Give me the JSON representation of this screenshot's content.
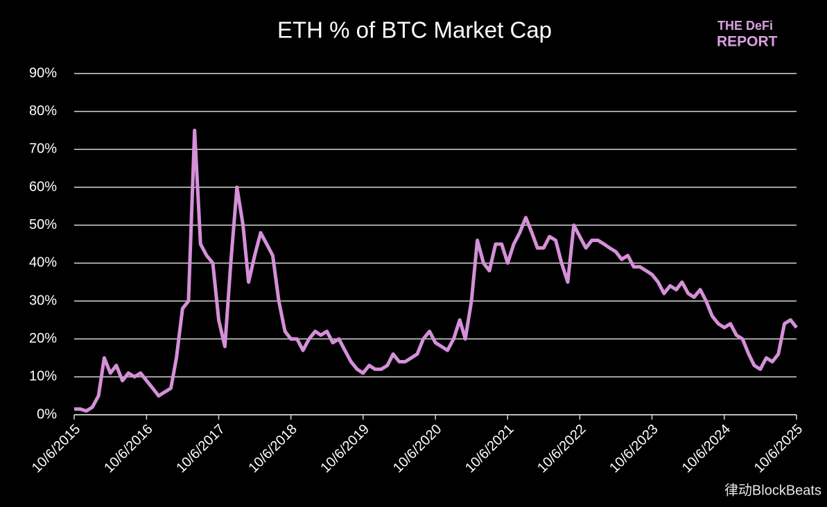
{
  "chart_data": {
    "type": "line",
    "title": "ETH % of BTC Market Cap",
    "logo": {
      "line1": "THE DeFi",
      "line2": "REPORT"
    },
    "watermark": "律动BlockBeats",
    "x": [
      "2015-10-06",
      "2015-11-06",
      "2015-12-06",
      "2016-01-06",
      "2016-02-06",
      "2016-03-06",
      "2016-04-06",
      "2016-05-06",
      "2016-06-06",
      "2016-07-06",
      "2016-08-06",
      "2016-09-06",
      "2016-10-06",
      "2016-11-06",
      "2016-12-06",
      "2017-01-06",
      "2017-02-06",
      "2017-03-06",
      "2017-04-06",
      "2017-05-06",
      "2017-06-06",
      "2017-07-06",
      "2017-08-06",
      "2017-09-06",
      "2017-10-06",
      "2017-11-06",
      "2017-12-06",
      "2018-01-06",
      "2018-02-06",
      "2018-03-06",
      "2018-04-06",
      "2018-05-06",
      "2018-06-06",
      "2018-07-06",
      "2018-08-06",
      "2018-09-06",
      "2018-10-06",
      "2018-11-06",
      "2018-12-06",
      "2019-01-06",
      "2019-02-06",
      "2019-03-06",
      "2019-04-06",
      "2019-05-06",
      "2019-06-06",
      "2019-07-06",
      "2019-08-06",
      "2019-09-06",
      "2019-10-06",
      "2019-11-06",
      "2019-12-06",
      "2020-01-06",
      "2020-02-06",
      "2020-03-06",
      "2020-04-06",
      "2020-05-06",
      "2020-06-06",
      "2020-07-06",
      "2020-08-06",
      "2020-09-06",
      "2020-10-06",
      "2020-11-06",
      "2020-12-06",
      "2021-01-06",
      "2021-02-06",
      "2021-03-06",
      "2021-04-06",
      "2021-05-06",
      "2021-06-06",
      "2021-07-06",
      "2021-08-06",
      "2021-09-06",
      "2021-10-06",
      "2021-11-06",
      "2021-12-06",
      "2022-01-06",
      "2022-02-06",
      "2022-03-06",
      "2022-04-06",
      "2022-05-06",
      "2022-06-06",
      "2022-07-06",
      "2022-08-06",
      "2022-09-06",
      "2022-10-06",
      "2022-11-06",
      "2022-12-06",
      "2023-01-06",
      "2023-02-06",
      "2023-03-06",
      "2023-04-06",
      "2023-05-06",
      "2023-06-06",
      "2023-07-06",
      "2023-08-06",
      "2023-09-06",
      "2023-10-06",
      "2023-11-06",
      "2023-12-06",
      "2024-01-06",
      "2024-02-06",
      "2024-03-06",
      "2024-04-06",
      "2024-05-06",
      "2024-06-06",
      "2024-07-06",
      "2024-08-06",
      "2024-09-06",
      "2024-10-06",
      "2024-11-06",
      "2024-12-06",
      "2025-01-06",
      "2025-02-06",
      "2025-03-06",
      "2025-04-06",
      "2025-05-06",
      "2025-06-06",
      "2025-07-06",
      "2025-08-06",
      "2025-09-06",
      "2025-10-06"
    ],
    "series": [
      {
        "color": "#d490d8",
        "values": [
          1.5,
          1.5,
          1,
          2,
          5,
          15,
          11,
          13,
          9,
          11,
          10,
          11,
          9,
          7,
          5,
          6,
          7,
          15,
          28,
          30,
          75,
          45,
          42,
          40,
          25,
          18,
          40,
          60,
          50,
          35,
          42,
          48,
          45,
          42,
          30,
          22,
          20,
          20,
          17,
          20,
          22,
          21,
          22,
          19,
          20,
          17,
          14,
          12,
          11,
          13,
          12,
          12,
          13,
          16,
          14,
          14,
          15,
          16,
          20,
          22,
          19,
          18,
          17,
          20,
          25,
          20,
          30,
          46,
          40,
          38,
          45,
          45,
          40,
          45,
          48,
          52,
          48,
          44,
          44,
          47,
          46,
          40,
          35,
          50,
          47,
          44,
          46,
          46,
          45,
          44,
          43,
          41,
          42,
          39,
          39,
          38,
          37,
          35,
          32,
          34,
          33,
          35,
          32,
          31,
          33,
          30,
          26,
          24,
          23,
          24,
          21,
          20,
          16,
          13,
          12,
          15,
          14,
          16,
          24,
          25,
          23
        ]
      }
    ],
    "xlim": [
      "2015-10-06",
      "2025-10-06"
    ],
    "xticks": [
      {
        "value": "2015-10-06",
        "label": "10/6/2015"
      },
      {
        "value": "2016-10-06",
        "label": "10/6/2016"
      },
      {
        "value": "2017-10-06",
        "label": "10/6/2017"
      },
      {
        "value": "2018-10-06",
        "label": "10/6/2018"
      },
      {
        "value": "2019-10-06",
        "label": "10/6/2019"
      },
      {
        "value": "2020-10-06",
        "label": "10/6/2020"
      },
      {
        "value": "2021-10-06",
        "label": "10/6/2021"
      },
      {
        "value": "2022-10-06",
        "label": "10/6/2022"
      },
      {
        "value": "2023-10-06",
        "label": "10/6/2023"
      },
      {
        "value": "2024-10-06",
        "label": "10/6/2024"
      },
      {
        "value": "2025-10-06",
        "label": "10/6/2025"
      }
    ],
    "ylim": [
      0,
      90
    ],
    "yticks": [
      {
        "value": 0,
        "label": "0%"
      },
      {
        "value": 10,
        "label": "10%"
      },
      {
        "value": 20,
        "label": "20%"
      },
      {
        "value": 30,
        "label": "30%"
      },
      {
        "value": 40,
        "label": "40%"
      },
      {
        "value": 50,
        "label": "50%"
      },
      {
        "value": 60,
        "label": "60%"
      },
      {
        "value": 70,
        "label": "70%"
      },
      {
        "value": 80,
        "label": "80%"
      },
      {
        "value": 90,
        "label": "90%"
      }
    ],
    "grid": true
  }
}
